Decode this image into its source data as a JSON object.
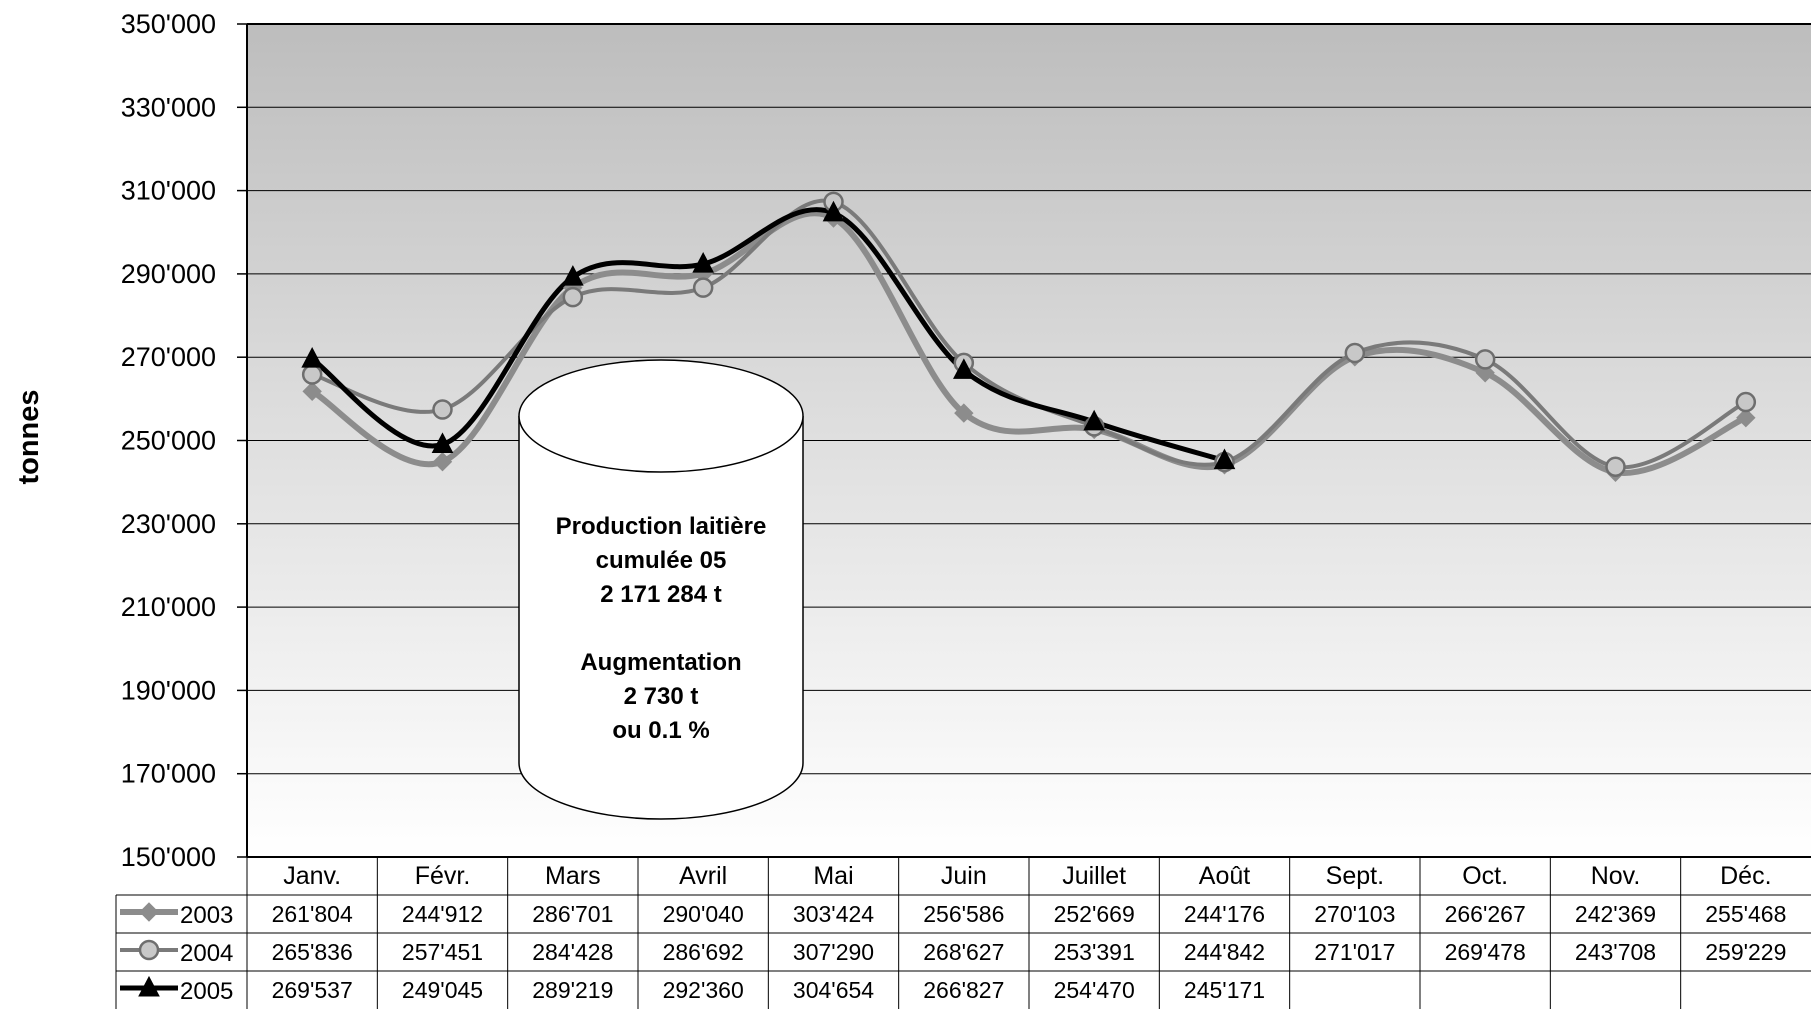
{
  "chart_data": {
    "type": "line",
    "ylabel": "tonnes",
    "ylim": [
      150000,
      350000
    ],
    "yticks": [
      "150'000",
      "170'000",
      "190'000",
      "210'000",
      "230'000",
      "250'000",
      "270'000",
      "290'000",
      "310'000",
      "330'000",
      "350'000"
    ],
    "categories": [
      "Janv.",
      "Févr.",
      "Mars",
      "Avril",
      "Mai",
      "Juin",
      "Juillet",
      "Août",
      "Sept.",
      "Oct.",
      "Nov.",
      "Déc."
    ],
    "grid": true,
    "legend": "data-table-below",
    "series": [
      {
        "name": "2003",
        "color": "#8c8c8c",
        "marker": "diamond",
        "values": [
          261804,
          244912,
          286701,
          290040,
          303424,
          256586,
          252669,
          244176,
          270103,
          266267,
          242369,
          255468
        ],
        "labels": [
          "261'804",
          "244'912",
          "286'701",
          "290'040",
          "303'424",
          "256'586",
          "252'669",
          "244'176",
          "270'103",
          "266'267",
          "242'369",
          "255'468"
        ]
      },
      {
        "name": "2004",
        "color": "#7a7a7a",
        "marker": "circle",
        "values": [
          265836,
          257451,
          284428,
          286692,
          307290,
          268627,
          253391,
          244842,
          271017,
          269478,
          243708,
          259229
        ],
        "labels": [
          "265'836",
          "257'451",
          "284'428",
          "286'692",
          "307'290",
          "268'627",
          "253'391",
          "244'842",
          "271'017",
          "269'478",
          "243'708",
          "259'229"
        ]
      },
      {
        "name": "2005",
        "color": "#000000",
        "marker": "triangle",
        "values": [
          269537,
          249045,
          289219,
          292360,
          304654,
          266827,
          254470,
          245171,
          null,
          null,
          null,
          null
        ],
        "labels": [
          "269'537",
          "249'045",
          "289'219",
          "292'360",
          "304'654",
          "266'827",
          "254'470",
          "245'171",
          "",
          "",
          "",
          ""
        ]
      }
    ],
    "annotation": {
      "lines": [
        "Production laitière",
        "cumulée 05",
        "2 171 284 t",
        "",
        "Augmentation",
        "2 730 t",
        "ou 0.1 %"
      ]
    }
  }
}
